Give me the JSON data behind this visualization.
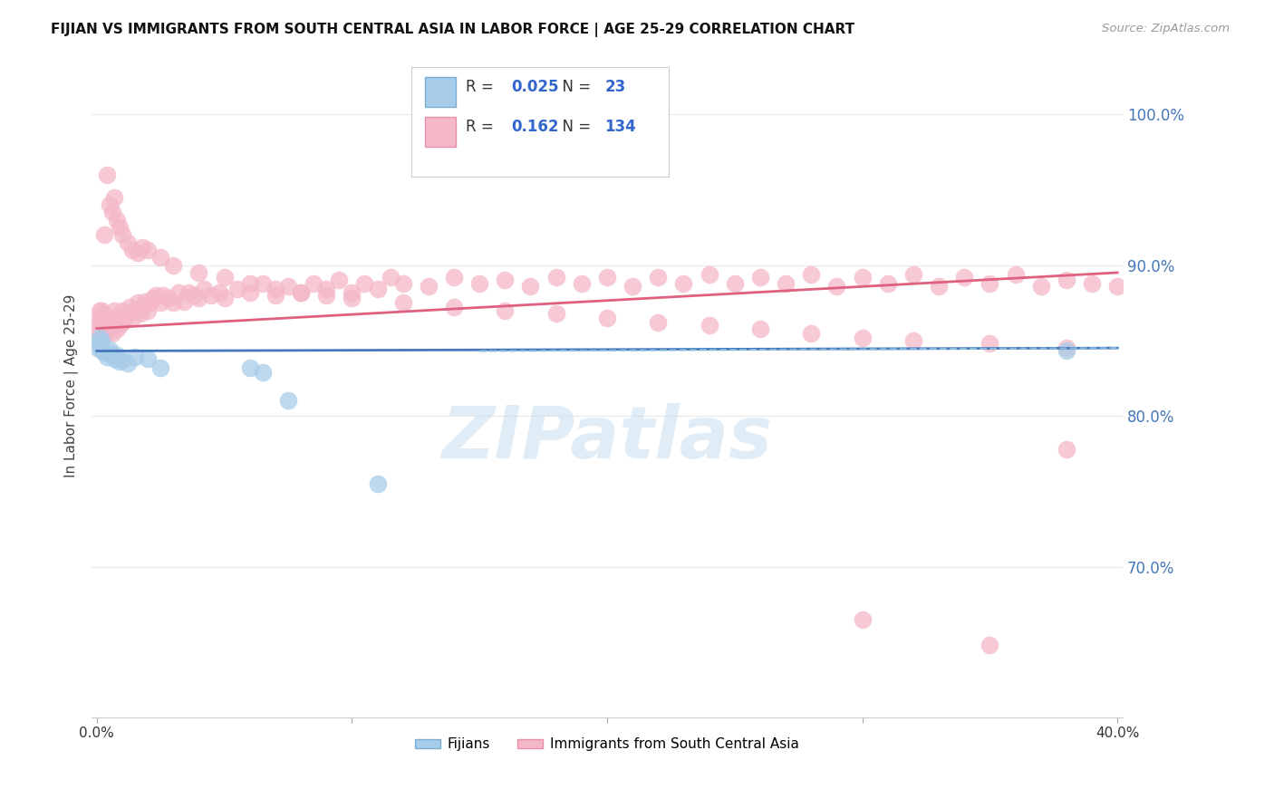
{
  "title": "FIJIAN VS IMMIGRANTS FROM SOUTH CENTRAL ASIA IN LABOR FORCE | AGE 25-29 CORRELATION CHART",
  "source": "Source: ZipAtlas.com",
  "ylabel": "In Labor Force | Age 25-29",
  "xlim": [
    -0.002,
    0.402
  ],
  "ylim": [
    0.6,
    1.04
  ],
  "ytick_labels": [
    "100.0%",
    "90.0%",
    "80.0%",
    "70.0%"
  ],
  "ytick_values": [
    1.0,
    0.9,
    0.8,
    0.7
  ],
  "xtick_labels": [
    "0.0%",
    "",
    "",
    "",
    "40.0%"
  ],
  "xtick_values": [
    0.0,
    0.1,
    0.2,
    0.3,
    0.4
  ],
  "fijian_color": "#a8cce8",
  "fijian_edge": "#7aaed4",
  "immigrant_color": "#f4b8c8",
  "immigrant_edge": "#e890a8",
  "legend_fijian_label": "Fijians",
  "legend_immigrant_label": "Immigrants from South Central Asia",
  "R_fijian": 0.025,
  "N_fijian": 23,
  "R_immigrant": 0.162,
  "N_immigrant": 134,
  "fijian_line_color": "#4477bb",
  "immigrant_line_color": "#e06080",
  "dashed_line_color": "#88bbdd",
  "background_color": "#ffffff",
  "grid_color": "#e8e8e8",
  "watermark_text": "ZIPatlas",
  "watermark_color": "#c8dff0",
  "fijian_x": [
    0.0005,
    0.001,
    0.001,
    0.0015,
    0.002,
    0.002,
    0.003,
    0.004,
    0.005,
    0.006,
    0.007,
    0.008,
    0.009,
    0.01,
    0.012,
    0.015,
    0.02,
    0.025,
    0.06,
    0.065,
    0.075,
    0.11,
    0.38
  ],
  "fijian_y": [
    0.845,
    0.848,
    0.852,
    0.847,
    0.843,
    0.85,
    0.842,
    0.839,
    0.844,
    0.841,
    0.838,
    0.84,
    0.836,
    0.837,
    0.835,
    0.839,
    0.838,
    0.832,
    0.832,
    0.829,
    0.81,
    0.755,
    0.843
  ],
  "immigrant_x": [
    0.001,
    0.001,
    0.001,
    0.001,
    0.001,
    0.002,
    0.002,
    0.002,
    0.002,
    0.003,
    0.003,
    0.003,
    0.004,
    0.004,
    0.005,
    0.005,
    0.006,
    0.006,
    0.007,
    0.007,
    0.008,
    0.008,
    0.009,
    0.009,
    0.01,
    0.01,
    0.011,
    0.012,
    0.013,
    0.014,
    0.015,
    0.016,
    0.017,
    0.018,
    0.019,
    0.02,
    0.021,
    0.022,
    0.023,
    0.025,
    0.026,
    0.028,
    0.03,
    0.032,
    0.034,
    0.036,
    0.038,
    0.04,
    0.042,
    0.045,
    0.048,
    0.05,
    0.055,
    0.06,
    0.065,
    0.07,
    0.075,
    0.08,
    0.085,
    0.09,
    0.095,
    0.1,
    0.105,
    0.11,
    0.115,
    0.12,
    0.13,
    0.14,
    0.15,
    0.16,
    0.17,
    0.18,
    0.19,
    0.2,
    0.21,
    0.22,
    0.23,
    0.24,
    0.25,
    0.26,
    0.27,
    0.28,
    0.29,
    0.3,
    0.31,
    0.32,
    0.33,
    0.34,
    0.35,
    0.36,
    0.37,
    0.38,
    0.39,
    0.4,
    0.003,
    0.004,
    0.005,
    0.006,
    0.007,
    0.008,
    0.009,
    0.01,
    0.012,
    0.014,
    0.016,
    0.018,
    0.02,
    0.025,
    0.03,
    0.04,
    0.05,
    0.06,
    0.07,
    0.08,
    0.09,
    0.1,
    0.12,
    0.14,
    0.16,
    0.18,
    0.2,
    0.22,
    0.24,
    0.26,
    0.28,
    0.3,
    0.32,
    0.35,
    0.38,
    0.3,
    0.35,
    0.38
  ],
  "immigrant_y": [
    0.855,
    0.858,
    0.862,
    0.865,
    0.87,
    0.855,
    0.86,
    0.865,
    0.87,
    0.858,
    0.862,
    0.868,
    0.855,
    0.862,
    0.858,
    0.864,
    0.855,
    0.862,
    0.865,
    0.87,
    0.858,
    0.864,
    0.86,
    0.866,
    0.862,
    0.87,
    0.865,
    0.868,
    0.872,
    0.865,
    0.87,
    0.875,
    0.868,
    0.872,
    0.876,
    0.87,
    0.875,
    0.878,
    0.88,
    0.875,
    0.88,
    0.878,
    0.875,
    0.882,
    0.876,
    0.882,
    0.88,
    0.878,
    0.884,
    0.88,
    0.882,
    0.878,
    0.884,
    0.882,
    0.888,
    0.88,
    0.886,
    0.882,
    0.888,
    0.884,
    0.89,
    0.882,
    0.888,
    0.884,
    0.892,
    0.888,
    0.886,
    0.892,
    0.888,
    0.89,
    0.886,
    0.892,
    0.888,
    0.892,
    0.886,
    0.892,
    0.888,
    0.894,
    0.888,
    0.892,
    0.888,
    0.894,
    0.886,
    0.892,
    0.888,
    0.894,
    0.886,
    0.892,
    0.888,
    0.894,
    0.886,
    0.89,
    0.888,
    0.886,
    0.92,
    0.96,
    0.94,
    0.935,
    0.945,
    0.93,
    0.925,
    0.92,
    0.915,
    0.91,
    0.908,
    0.912,
    0.91,
    0.905,
    0.9,
    0.895,
    0.892,
    0.888,
    0.884,
    0.882,
    0.88,
    0.878,
    0.875,
    0.872,
    0.87,
    0.868,
    0.865,
    0.862,
    0.86,
    0.858,
    0.855,
    0.852,
    0.85,
    0.848,
    0.845,
    0.665,
    0.648,
    0.778
  ]
}
